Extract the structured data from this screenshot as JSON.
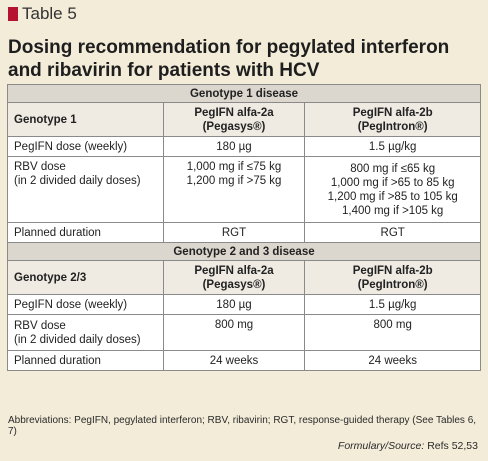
{
  "table_label": "Table 5",
  "title": "Dosing recommendation for pegylated interferon and ribavirin for patients with HCV",
  "section1": {
    "band": "Genotype 1 disease",
    "header": {
      "col1": "Genotype 1",
      "col2_line1": "PegIFN alfa-2a",
      "col2_line2": "(Pegasys®)",
      "col3_line1": "PegIFN alfa-2b",
      "col3_line2": "(PegIntron®)"
    },
    "rows": {
      "peg": {
        "label": "PegIFN dose (weekly)",
        "c2": "180 µg",
        "c3": "1.5 µg/kg"
      },
      "rbv": {
        "label_line1": "RBV dose",
        "label_line2": "(in 2 divided daily doses)",
        "c2": [
          "1,000 mg if ≤75 kg",
          "1,200 mg if >75 kg"
        ],
        "c3": [
          "800 mg if ≤65 kg",
          "1,000 mg if >65 to 85 kg",
          "1,200 mg if >85 to 105 kg",
          "1,400 mg if >105 kg"
        ]
      },
      "duration": {
        "label": "Planned duration",
        "c2": "RGT",
        "c3": "RGT"
      }
    }
  },
  "section2": {
    "band": "Genotype 2 and 3 disease",
    "header": {
      "col1": "Genotype 2/3",
      "col2_line1": "PegIFN alfa-2a",
      "col2_line2": "(Pegasys®)",
      "col3_line1": "PegIFN alfa-2b",
      "col3_line2": "(PegIntron®)"
    },
    "rows": {
      "peg": {
        "label": "PegIFN dose (weekly)",
        "c2": "180 µg",
        "c3": "1.5 µg/kg"
      },
      "rbv": {
        "label_line1": "RBV dose",
        "label_line2": "(in 2 divided daily doses)",
        "c2": "800 mg",
        "c3": "800 mg"
      },
      "duration": {
        "label": "Planned duration",
        "c2": "24 weeks",
        "c3": "24 weeks"
      }
    }
  },
  "footnote": "Abbreviations: PegIFN, pegylated interferon; RBV, ribavirin; RGT, response-guided therapy (See Tables 6, 7)",
  "source": {
    "label": "Formulary/Source:",
    "text": "Refs 52,53"
  },
  "colors": {
    "marker": "#b5122f",
    "background": "#f3ecd9",
    "band": "#dcd7ce"
  }
}
